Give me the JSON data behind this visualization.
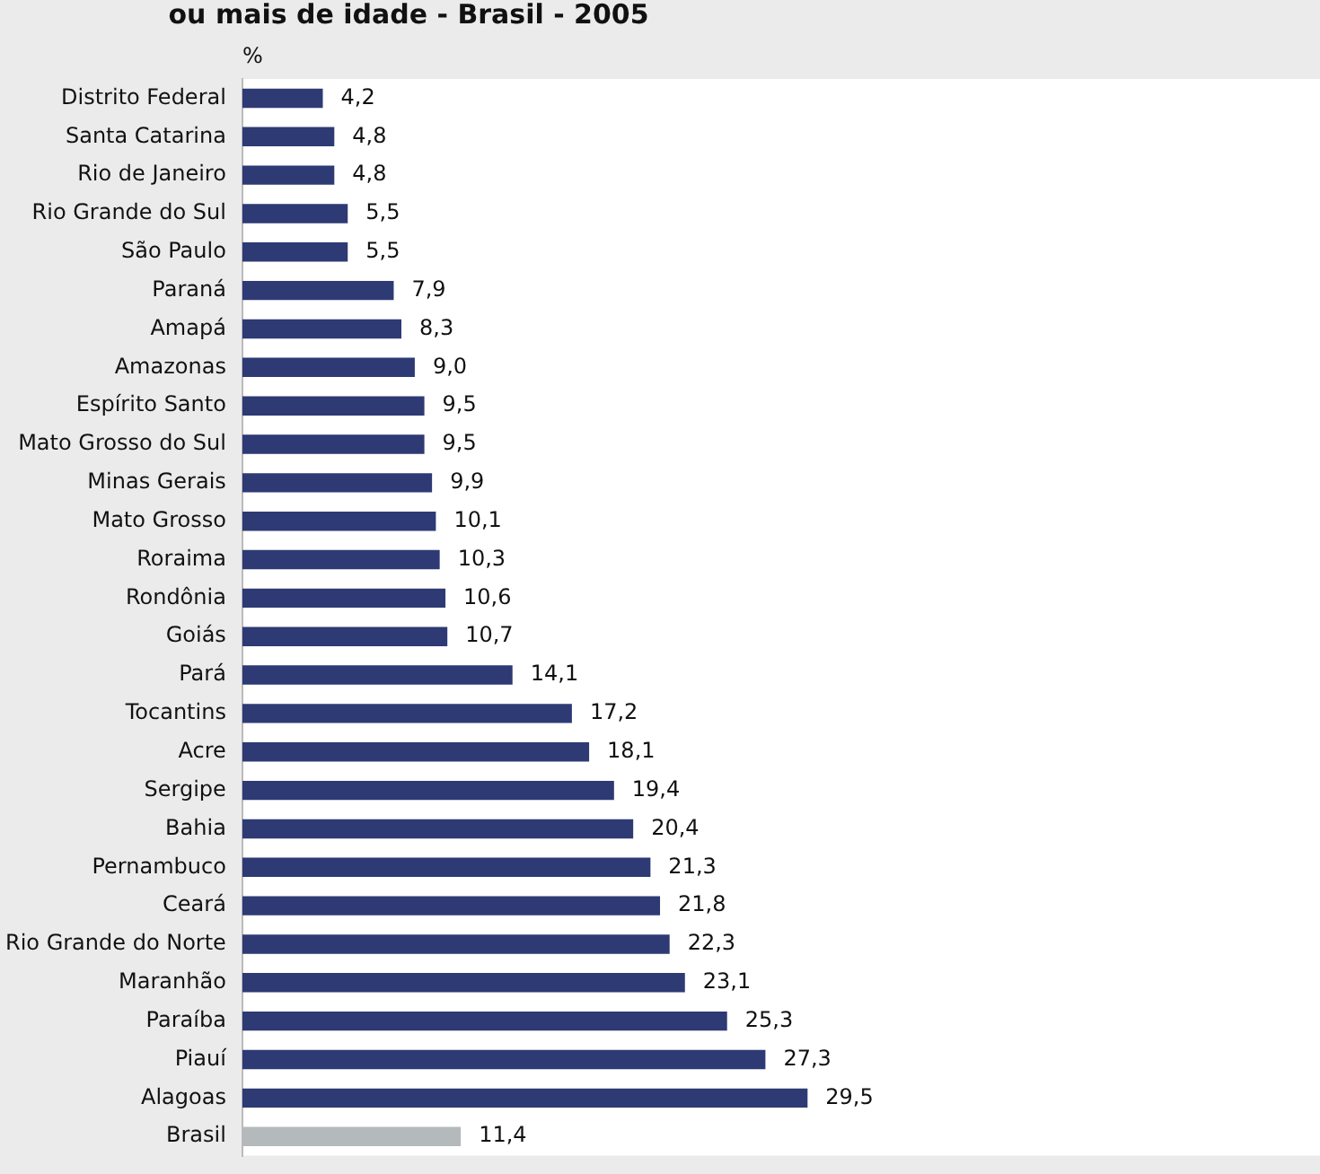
{
  "chart_data": {
    "type": "bar",
    "orientation": "horizontal",
    "title": "ou mais de idade - Brasil - 2005",
    "xlabel": "%",
    "categories": [
      "Distrito Federal",
      "Santa Catarina",
      "Rio de Janeiro",
      "Rio Grande do Sul",
      "São Paulo",
      "Paraná",
      "Amapá",
      "Amazonas",
      "Espírito Santo",
      "Mato Grosso do Sul",
      "Minas Gerais",
      "Mato Grosso",
      "Roraima",
      "Rondônia",
      "Goiás",
      "Pará",
      "Tocantins",
      "Acre",
      "Sergipe",
      "Bahia",
      "Pernambuco",
      "Ceará",
      "Rio Grande do Norte",
      "Maranhão",
      "Paraíba",
      "Piauí",
      "Alagoas",
      "Brasil"
    ],
    "values": [
      4.2,
      4.8,
      4.8,
      5.5,
      5.5,
      7.9,
      8.3,
      9.0,
      9.5,
      9.5,
      9.9,
      10.1,
      10.3,
      10.6,
      10.7,
      14.1,
      17.2,
      18.1,
      19.4,
      20.4,
      21.3,
      21.8,
      22.3,
      23.1,
      25.3,
      27.3,
      29.5,
      11.4
    ],
    "value_labels": [
      "4,2",
      "4,8",
      "4,8",
      "5,5",
      "5,5",
      "7,9",
      "8,3",
      "9,0",
      "9,5",
      "9,5",
      "9,9",
      "10,1",
      "10,3",
      "10,6",
      "10,7",
      "14,1",
      "17,2",
      "18,1",
      "19,4",
      "20,4",
      "21,3",
      "21,8",
      "22,3",
      "23,1",
      "25,3",
      "27,3",
      "29,5",
      "11,4"
    ],
    "colors": [
      "#2e3a74",
      "#2e3a74",
      "#2e3a74",
      "#2e3a74",
      "#2e3a74",
      "#2e3a74",
      "#2e3a74",
      "#2e3a74",
      "#2e3a74",
      "#2e3a74",
      "#2e3a74",
      "#2e3a74",
      "#2e3a74",
      "#2e3a74",
      "#2e3a74",
      "#2e3a74",
      "#2e3a74",
      "#2e3a74",
      "#2e3a74",
      "#2e3a74",
      "#2e3a74",
      "#2e3a74",
      "#2e3a74",
      "#2e3a74",
      "#2e3a74",
      "#2e3a74",
      "#2e3a74",
      "#b4b9bc"
    ],
    "grid": false,
    "legend": false
  }
}
